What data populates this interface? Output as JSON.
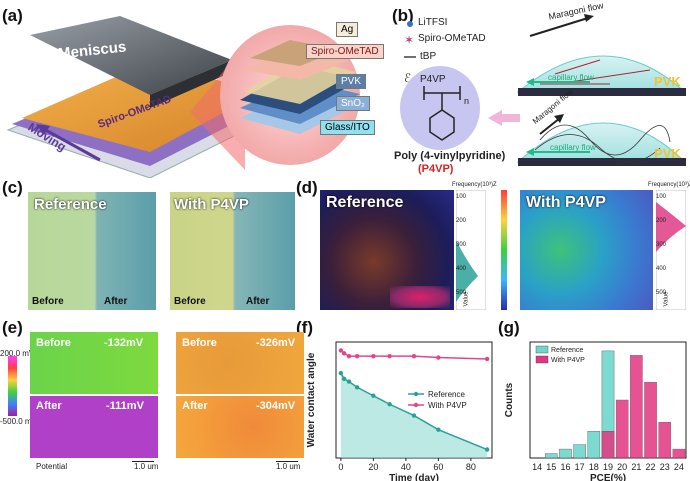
{
  "panels": {
    "a": "(a)",
    "b": "(b)",
    "c": "(c)",
    "d": "(d)",
    "e": "(e)",
    "f": "(f)",
    "g": "(g)"
  },
  "a": {
    "meniscus": "Meniscus",
    "spiro_on_substrate": "Spiro-OMeTAD",
    "moving": "Moving",
    "layers": [
      "Ag",
      "Spiro-OMeTAD",
      "PVK",
      "SnO₂",
      "Glass/ITO"
    ]
  },
  "b": {
    "legend": [
      "LiTFSI",
      "Spiro-OMeTAD",
      "tBP",
      "P4VP"
    ],
    "polymer_name": "Poly (4-vinylpyridine)",
    "polymer_abbr": "(P4VP)",
    "subscript_n": "n",
    "maragoni": "Maragoni flow",
    "capillary": "capillary flow",
    "pvk": "PVK"
  },
  "c": {
    "reference": "Reference",
    "with_p4vp": "With P4VP",
    "before": "Before",
    "after": "After"
  },
  "d": {
    "reference": "Reference",
    "with_p4vp": "With P4VP",
    "freq_label": "Frequency(10³)Z",
    "value_label": "Value",
    "axis_ticks": [
      "100",
      "200",
      "300",
      "400",
      "500"
    ]
  },
  "e": {
    "scale_max": "200.0 mV",
    "scale_min": "-500.0 mV",
    "left": {
      "before": "Before",
      "before_val": "-132mV",
      "after": "After",
      "after_val": "-111mV"
    },
    "right": {
      "before": "Before",
      "before_val": "-326mV",
      "after": "After",
      "after_val": "-304mV"
    },
    "potential": "Potential",
    "scalebar": "1.0 um"
  },
  "colors": {
    "reference": "#2aa198",
    "p4vp": "#e0468c",
    "ref_bar": "#6fd6cf",
    "p4vp_bar": "#e3367f"
  },
  "chart_data": [
    {
      "type": "line",
      "xlabel": "Time (day)",
      "ylabel": "Water contact angle",
      "xlim": [
        -3,
        93
      ],
      "ylim": [
        45,
        86
      ],
      "xticks": [
        0,
        20,
        40,
        60,
        80
      ],
      "legend_position": "center-right",
      "series": [
        {
          "name": "Reference",
          "x": [
            0,
            2,
            5,
            10,
            20,
            30,
            45,
            60,
            90
          ],
          "y": [
            75,
            73,
            72,
            70,
            67,
            64,
            60,
            55,
            48
          ]
        },
        {
          "name": "With P4VP",
          "x": [
            0,
            2,
            5,
            10,
            20,
            30,
            45,
            60,
            90
          ],
          "y": [
            83,
            82,
            81,
            81,
            81,
            81,
            81,
            80.5,
            80
          ]
        }
      ]
    },
    {
      "type": "bar",
      "xlabel": "PCE(%)",
      "ylabel": "Counts",
      "categories": [
        "14",
        "15",
        "16",
        "17",
        "18",
        "19",
        "20",
        "21",
        "22",
        "23",
        "24"
      ],
      "ylim": [
        0,
        26
      ],
      "legend_position": "top-left",
      "series": [
        {
          "name": "Reference",
          "values": [
            0,
            1,
            2,
            3,
            6,
            24,
            0,
            0,
            0,
            0,
            0
          ]
        },
        {
          "name": "With P4VP",
          "values": [
            0,
            0,
            0,
            0,
            0,
            6,
            13,
            23,
            17,
            8,
            2
          ]
        }
      ]
    }
  ]
}
